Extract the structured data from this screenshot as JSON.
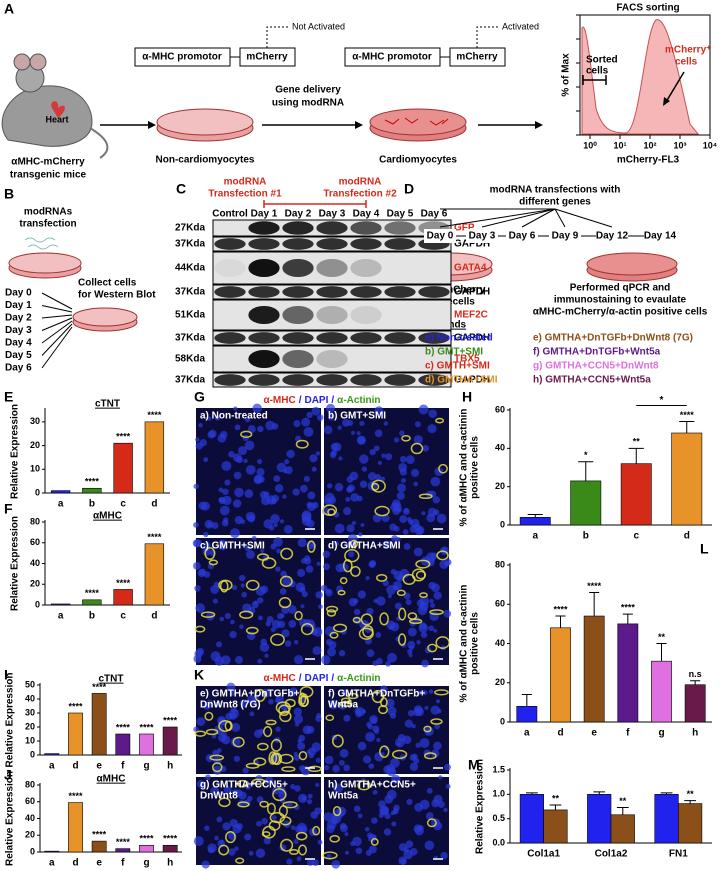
{
  "panel_labels": [
    "A",
    "B",
    "C",
    "D",
    "E",
    "F",
    "G",
    "H",
    "I",
    "J",
    "K",
    "L",
    "M"
  ],
  "panel_a": {
    "heart": "Heart",
    "mouse": [
      "αMHC-mCherry",
      "transgenic mice"
    ],
    "promoter": "α-MHC promotor",
    "reporter": "mCherry",
    "not_activated": "Not Activated",
    "activated": "Activated",
    "delivery": [
      "Gene delivery",
      "using modRNA"
    ],
    "dish1": "Non-cardiomyocytes",
    "dish2": "Cardiomyocytes",
    "facs": {
      "title": "FACS sorting",
      "y_label": "% of Max",
      "x_label": "mCherry-FL3",
      "xticks": [
        "10⁰",
        "10¹",
        "10²",
        "10³",
        "10⁴"
      ],
      "sorted": [
        "Sorted",
        "cells"
      ],
      "positive": [
        "mCherry⁺",
        "cells"
      ]
    }
  },
  "panel_b": {
    "transfection": [
      "modRNAs",
      "transfection"
    ],
    "collect": [
      "Collect cells",
      "for Western Blot"
    ],
    "days": [
      "Day 0",
      "Day 1",
      "Day 2",
      "Day 3",
      "Day 4",
      "Day 5",
      "Day 6"
    ]
  },
  "panel_c": {
    "transfection_1": [
      "modRNA",
      "Transfection #1"
    ],
    "transfection_2": [
      "modRNA",
      "Transfection #2"
    ],
    "lanes": [
      "Control",
      "Day 1",
      "Day 2",
      "Day 3",
      "Day 4",
      "Day 5",
      "Day 6"
    ],
    "rows": [
      {
        "size": "27Kda",
        "protein": "GFP",
        "color": "#d42a1a"
      },
      {
        "size": "37Kda",
        "protein": "GAPDH",
        "color": "#000000"
      },
      {
        "size": "44Kda",
        "protein": "GATA4",
        "color": "#d42a1a"
      },
      {
        "size": "37Kda",
        "protein": "GAPDH",
        "color": "#000000"
      },
      {
        "size": "51Kda",
        "protein": "MEF2C",
        "color": "#d42a1a"
      },
      {
        "size": "37Kda",
        "protein": "GAPDH",
        "color": "#000000"
      },
      {
        "size": "58Kda",
        "protein": "TBX5",
        "color": "#d42a1a"
      },
      {
        "size": "37Kda",
        "protein": "GAPDH",
        "color": "#000000"
      }
    ]
  },
  "panel_d": {
    "header": [
      "modRNA transfections with",
      "different genes"
    ],
    "days": [
      "Day 0",
      "Day 3",
      "Day 6",
      "Day 9",
      "Day 12",
      "Day 14"
    ],
    "negative": [
      "αMHC-mCherry",
      "negativecells"
    ],
    "assay": [
      "Performed qPCR and",
      "immunostaining to evaulate",
      "αMHC-mCherry/α-actin positive cells"
    ],
    "legend_title": "Legends",
    "legend": [
      {
        "text": "a) Non-treated",
        "color": "#2222ee"
      },
      {
        "text": "b) GMT+SMI",
        "color": "#3a8a1a"
      },
      {
        "text": "c) GMTH+SMI",
        "color": "#d42a1a"
      },
      {
        "text": "d) GMTHA+SMI",
        "color": "#e8922a"
      },
      {
        "text": "e) GMTHA+DnTGFb+DnWnt8 (7G)",
        "color": "#8b4f1a"
      },
      {
        "text": "f) GMTHA+DnTGFb+Wnt5a",
        "color": "#5c1a8a"
      },
      {
        "text": "g) GMTHA+CCN5+DnWnt8",
        "color": "#e070e0"
      },
      {
        "text": "h) GMTHA+CCN5+Wnt5a",
        "color": "#6a1a4a"
      }
    ]
  },
  "panel_g": {
    "title": [
      "α-MHC",
      "/",
      "DAPI",
      "/",
      "α-Actinin"
    ],
    "title_colors": [
      "#d42a1a",
      "#2222ee",
      "#2222ee",
      "#2222ee",
      "#3a9a1a"
    ],
    "images": [
      [
        "a) Non-treated"
      ],
      [
        "b) GMT+SMI"
      ],
      [
        "c) GMTH+SMI"
      ],
      [
        "d) GMTHA+SMI"
      ]
    ]
  },
  "panel_k": {
    "title": [
      "α-MHC",
      "/",
      "DAPI",
      "/",
      "α-Actinin"
    ],
    "title_colors": [
      "#d42a1a",
      "#2222ee",
      "#2222ee",
      "#2222ee",
      "#3a9a1a"
    ],
    "images": [
      [
        "e) GMTHA+DnTGFb+",
        "DnWnt8 (7G)"
      ],
      [
        "f)  GMTHA+DnTGFb+",
        "Wnt5a"
      ],
      [
        "g) GMTHA+CCN5+",
        "DnWnt8"
      ],
      [
        "h) GMTHA+CCN5+",
        "Wnt5a"
      ]
    ]
  },
  "chart_data": [
    {
      "type": "bar",
      "title": "cTNT",
      "y_label": [
        "Relative Expression"
      ],
      "categories": [
        "a",
        "b",
        "c",
        "d"
      ],
      "values": [
        1,
        2,
        21,
        30
      ],
      "colors": [
        "#2222ee",
        "#3a8a1a",
        "#d42a1a",
        "#e8922a"
      ],
      "stars": [
        null,
        "****",
        "****",
        "****"
      ],
      "ylim": [
        0,
        35
      ],
      "yticks": [
        0,
        10,
        20,
        30
      ]
    },
    {
      "type": "bar",
      "title": "αMHC",
      "y_label": [
        "Relative Expression"
      ],
      "categories": [
        "a",
        "b",
        "c",
        "d"
      ],
      "values": [
        1,
        5,
        15,
        59
      ],
      "colors": [
        "#2222ee",
        "#3a8a1a",
        "#d42a1a",
        "#e8922a"
      ],
      "stars": [
        null,
        "****",
        "****",
        "****"
      ],
      "ylim": [
        0,
        80
      ],
      "yticks": [
        0,
        20,
        40,
        60,
        80
      ]
    },
    {
      "type": "bar",
      "y_label": [
        "% of αMHC and α-actinin",
        "positive cells"
      ],
      "categories": [
        "a",
        "b",
        "c",
        "d"
      ],
      "values": [
        4,
        23,
        32,
        48
      ],
      "errors": [
        1.5,
        10,
        8,
        6
      ],
      "colors": [
        "#2222ee",
        "#3a8a1a",
        "#d42a1a",
        "#e8922a"
      ],
      "stars": [
        null,
        "*",
        "**",
        "****"
      ],
      "comparisons": [
        {
          "categories": [
            "c",
            "d"
          ],
          "label": "*"
        }
      ],
      "ylim": [
        0,
        60
      ],
      "yticks": [
        0,
        20,
        40,
        60
      ]
    },
    {
      "type": "bar",
      "title": "cTNT",
      "y_label": [
        "Relative Expression"
      ],
      "categories": [
        "a",
        "d",
        "e",
        "f",
        "g",
        "h"
      ],
      "values": [
        1,
        30,
        44,
        15,
        15,
        20
      ],
      "colors": [
        "#2222ee",
        "#e8922a",
        "#8b4f1a",
        "#5c1a8a",
        "#e070e0",
        "#6a1a4a"
      ],
      "stars": [
        null,
        "****",
        "****",
        "****",
        "****",
        "****"
      ],
      "ylim": [
        0,
        50
      ],
      "yticks": [
        0,
        10,
        20,
        30,
        40,
        50
      ]
    },
    {
      "type": "bar",
      "title": "αMHC",
      "y_label": [
        "Relative Expression"
      ],
      "categories": [
        "a",
        "d",
        "e",
        "f",
        "g",
        "h"
      ],
      "values": [
        1,
        59,
        13,
        4,
        8,
        8
      ],
      "colors": [
        "#2222ee",
        "#e8922a",
        "#8b4f1a",
        "#5c1a8a",
        "#e070e0",
        "#6a1a4a"
      ],
      "stars": [
        null,
        "****",
        "****",
        "****",
        "****",
        "****"
      ],
      "ylim": [
        0,
        80
      ],
      "yticks": [
        0,
        20,
        40,
        60,
        80
      ]
    },
    {
      "type": "bar",
      "y_label": [
        "% of αMHC and α-actinin",
        "positive cells"
      ],
      "categories": [
        "a",
        "d",
        "e",
        "f",
        "g",
        "h"
      ],
      "values": [
        8,
        48,
        54,
        50,
        31,
        19
      ],
      "errors": [
        6,
        6,
        12,
        5,
        9,
        2
      ],
      "colors": [
        "#2222ee",
        "#e8922a",
        "#8b4f1a",
        "#5c1a8a",
        "#e070e0",
        "#6a1a4a"
      ],
      "stars": [
        null,
        "****",
        "****",
        "****",
        "**",
        "n.s"
      ],
      "ylim": [
        0,
        80
      ],
      "yticks": [
        0,
        20,
        40,
        60,
        80
      ]
    },
    {
      "type": "grouped_bar",
      "y_label": [
        "Relative Expression"
      ],
      "categories": [
        "Col1a1",
        "Col1a2",
        "FN1"
      ],
      "series": [
        {
          "color": "#2222ee",
          "values": [
            1.0,
            1.0,
            1.0
          ],
          "errors": [
            0.03,
            0.05,
            0.03
          ]
        },
        {
          "color": "#8b4f1a",
          "values": [
            0.68,
            0.58,
            0.81
          ],
          "errors": [
            0.1,
            0.15,
            0.06
          ],
          "stars": [
            "**",
            "**",
            "**"
          ]
        }
      ],
      "ylim": [
        0,
        1.5
      ],
      "yticks": [
        {
          "value": 0,
          "label": "0.0"
        },
        0.5,
        {
          "value": 1,
          "label": "1.0"
        },
        1.5
      ]
    }
  ]
}
